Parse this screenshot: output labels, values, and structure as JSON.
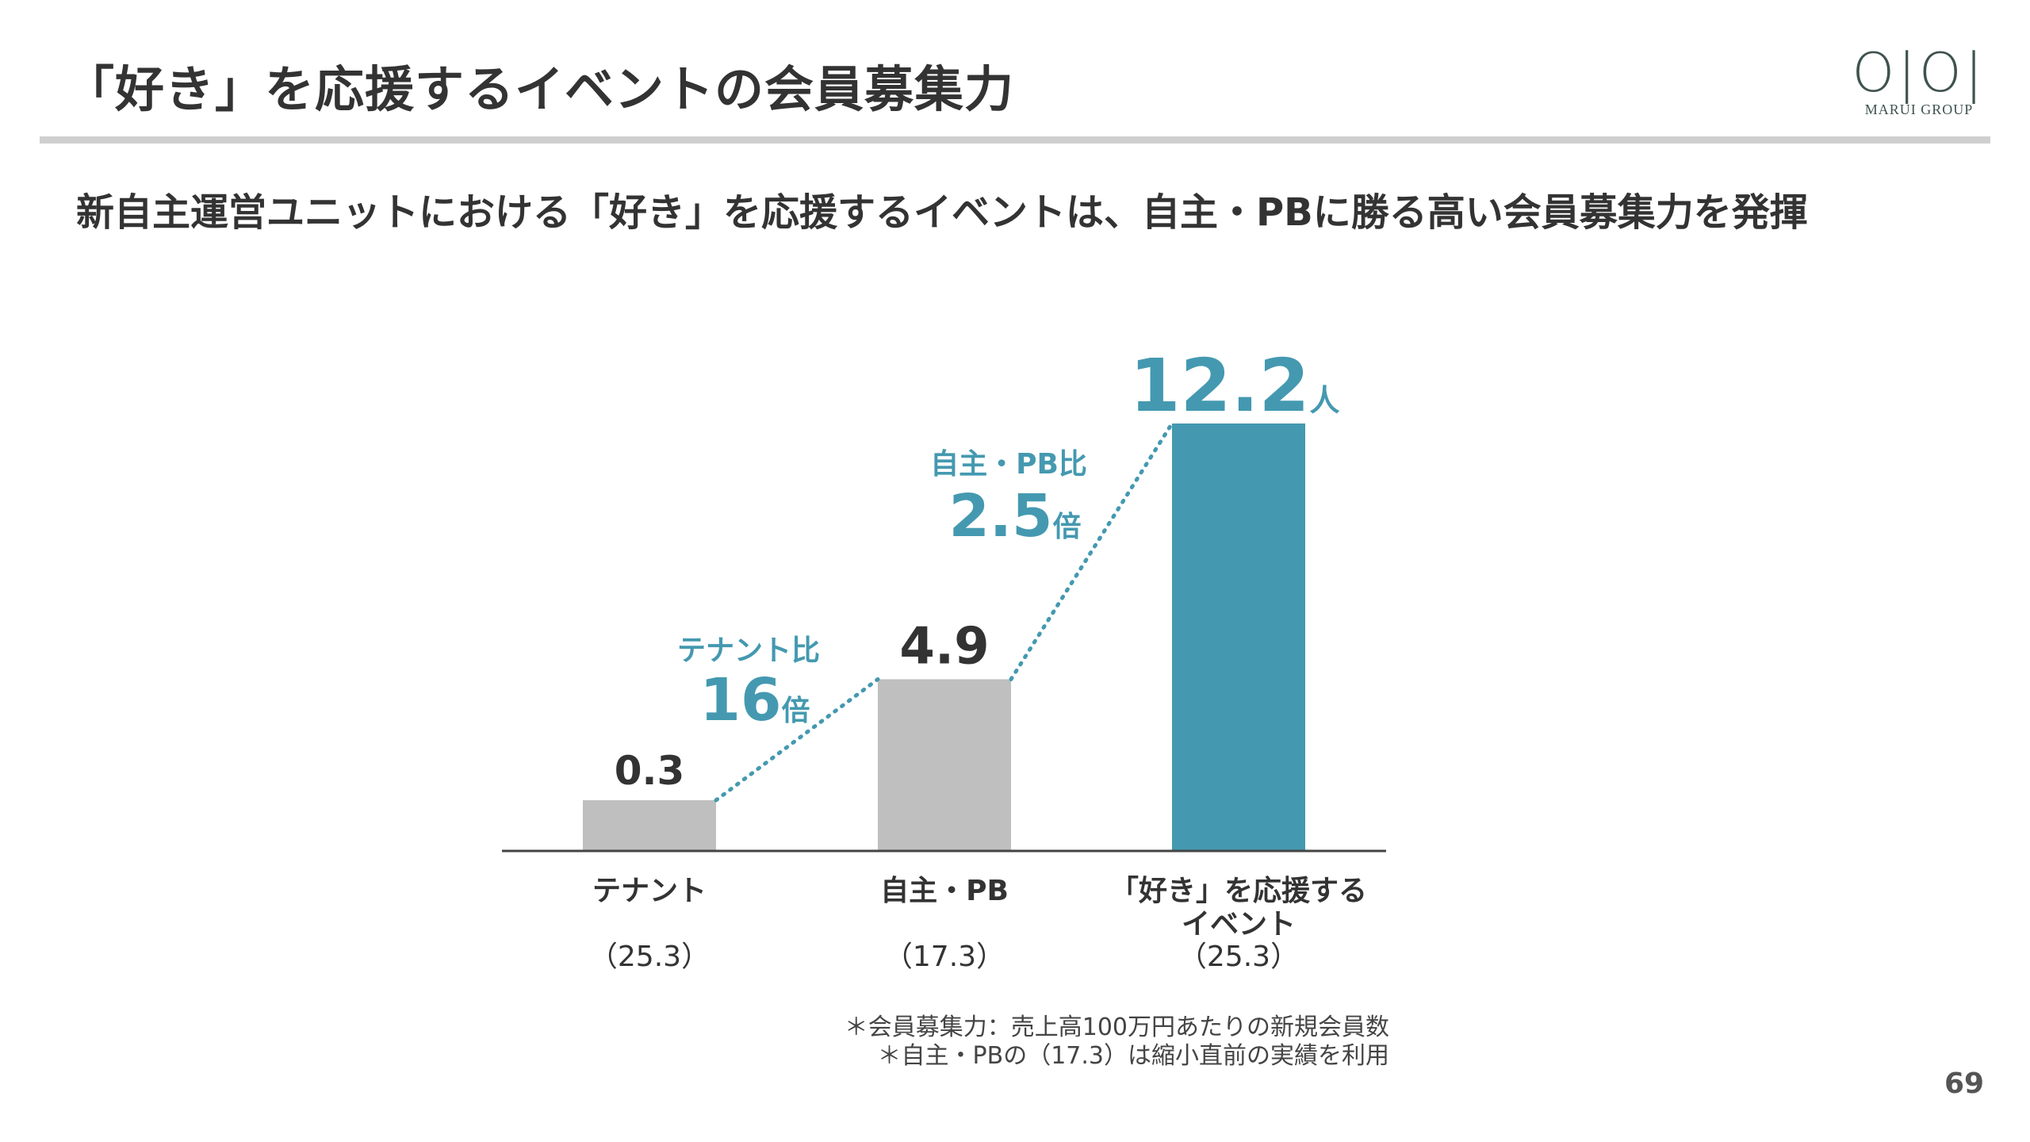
{
  "header": {
    "title": "「好き」を応援するイベントの会員募集力",
    "logo_text": "OIOI",
    "logo_sub": "MARUI GROUP"
  },
  "subtitle": "新自主運営ユニットにおける「好き」を応援するイベントは、自主・PBに勝る高い会員募集力を発揮",
  "chart_data": {
    "type": "bar",
    "categories": [
      "テナント",
      "自主・PB",
      "「好き」を応援する イベント"
    ],
    "category_lines": [
      [
        "テナント"
      ],
      [
        "自主・PB"
      ],
      [
        "「好き」を応援する",
        "イベント"
      ]
    ],
    "periods": [
      "（25.3）",
      "（17.3）",
      "（25.3）"
    ],
    "values": [
      0.3,
      4.9,
      12.2
    ],
    "value_labels": [
      "0.3",
      "4.9",
      "12.2"
    ],
    "value_unit": "人",
    "bar_colors": [
      "#bfbfbf",
      "#bfbfbf",
      "#4499b0"
    ],
    "accent_color": "#4499b0",
    "grid": false,
    "annotations": [
      {
        "label": "テナント比",
        "value": "16",
        "unit": "倍"
      },
      {
        "label": "自主・PB比",
        "value": "2.5",
        "unit": "倍"
      }
    ]
  },
  "footnotes": [
    "＊会員募集力：売上高100万円あたりの新規会員数",
    "＊自主・PBの（17.3）は縮小直前の実績を利用"
  ],
  "page_number": "69"
}
